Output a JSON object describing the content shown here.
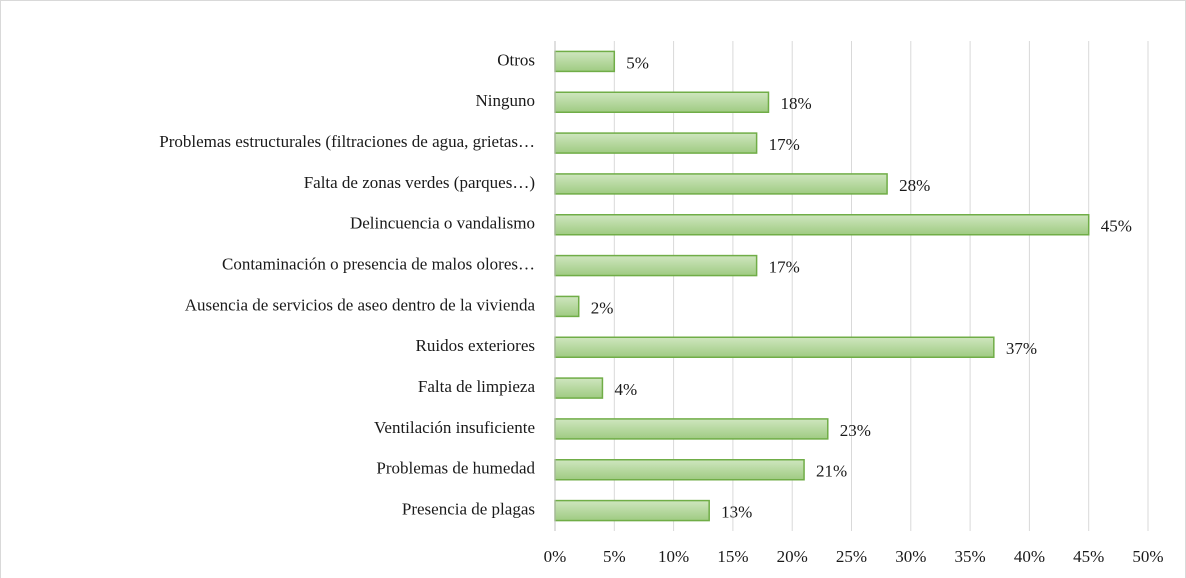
{
  "chart_data": {
    "type": "bar",
    "orientation": "horizontal",
    "categories": [
      "Otros",
      "Ninguno",
      "Problemas estructurales (filtraciones de agua, grietas…",
      "Falta de zonas verdes (parques…)",
      "Delincuencia o vandalismo",
      "Contaminación o presencia de malos olores…",
      "Ausencia de servicios de aseo dentro de la vivienda",
      "Ruidos exteriores",
      "Falta de limpieza",
      "Ventilación insuficiente",
      "Problemas de humedad",
      "Presencia de plagas"
    ],
    "values": [
      5,
      18,
      17,
      28,
      45,
      17,
      2,
      37,
      4,
      23,
      21,
      13
    ],
    "value_labels": [
      "5%",
      "18%",
      "17%",
      "28%",
      "45%",
      "17%",
      "2%",
      "37%",
      "4%",
      "23%",
      "21%",
      "13%"
    ],
    "color": "#a9d18e",
    "edge_color": "#70ad47",
    "xlim": [
      0,
      50
    ],
    "xticks": [
      {
        "value": 0,
        "label": "0%"
      },
      {
        "value": 5,
        "label": "5%"
      },
      {
        "value": 10,
        "label": "10%"
      },
      {
        "value": 15,
        "label": "15%"
      },
      {
        "value": 20,
        "label": "20%"
      },
      {
        "value": 25,
        "label": "25%"
      },
      {
        "value": 30,
        "label": "30%"
      },
      {
        "value": 35,
        "label": "35%"
      },
      {
        "value": 40,
        "label": "40%"
      },
      {
        "value": 45,
        "label": "45%"
      },
      {
        "value": 50,
        "label": "50%"
      }
    ],
    "grid": true
  }
}
